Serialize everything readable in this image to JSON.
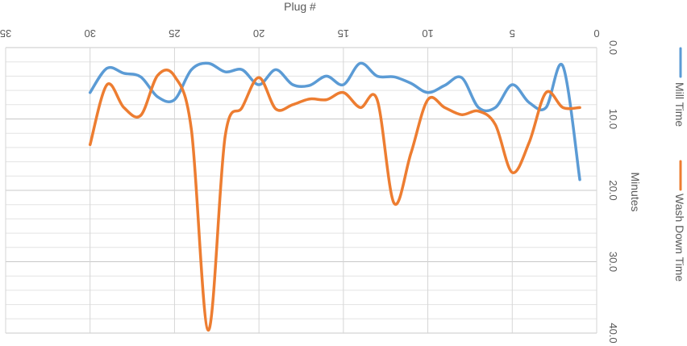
{
  "chart_data": {
    "type": "line",
    "xlabel": "Plug #",
    "ylabel": "Minutes",
    "xlim": [
      0,
      35
    ],
    "ylim": [
      0,
      40
    ],
    "x_ticks": [
      "0",
      "5",
      "10",
      "15",
      "20",
      "25",
      "30",
      "35"
    ],
    "y_ticks": [
      "0.0",
      "10.0",
      "20.0",
      "30.0",
      "40.0"
    ],
    "grid": true,
    "orientation": "rotated-90-clockwise",
    "legend_position": "right",
    "x": [
      1,
      2,
      3,
      4,
      5,
      6,
      7,
      8,
      9,
      10,
      11,
      12,
      13,
      14,
      15,
      16,
      17,
      18,
      19,
      20,
      21,
      22,
      23,
      24,
      25,
      26,
      27,
      28,
      29,
      30
    ],
    "series": [
      {
        "name": "Mill Time",
        "color": "#5b9bd5",
        "values": [
          18.5,
          2.6,
          8.4,
          7.7,
          5.2,
          8.4,
          8.4,
          4.2,
          5.3,
          6.3,
          5.0,
          4.1,
          4.0,
          2.2,
          5.2,
          4.0,
          5.3,
          5.2,
          3.1,
          5.2,
          3.1,
          3.4,
          2.2,
          3.1,
          7.3,
          6.9,
          4.1,
          3.6,
          2.9,
          6.3
        ]
      },
      {
        "name": "Wash Down Time",
        "color": "#ed7d31",
        "values": [
          8.4,
          8.4,
          6.3,
          13.3,
          17.5,
          10.8,
          8.9,
          9.4,
          8.4,
          7.3,
          14.8,
          21.8,
          7.3,
          8.4,
          6.3,
          7.3,
          7.2,
          8.0,
          8.6,
          4.2,
          8.4,
          12.4,
          39.6,
          11.5,
          4.0,
          3.9,
          9.5,
          8.4,
          5.2,
          13.6
        ]
      }
    ]
  }
}
